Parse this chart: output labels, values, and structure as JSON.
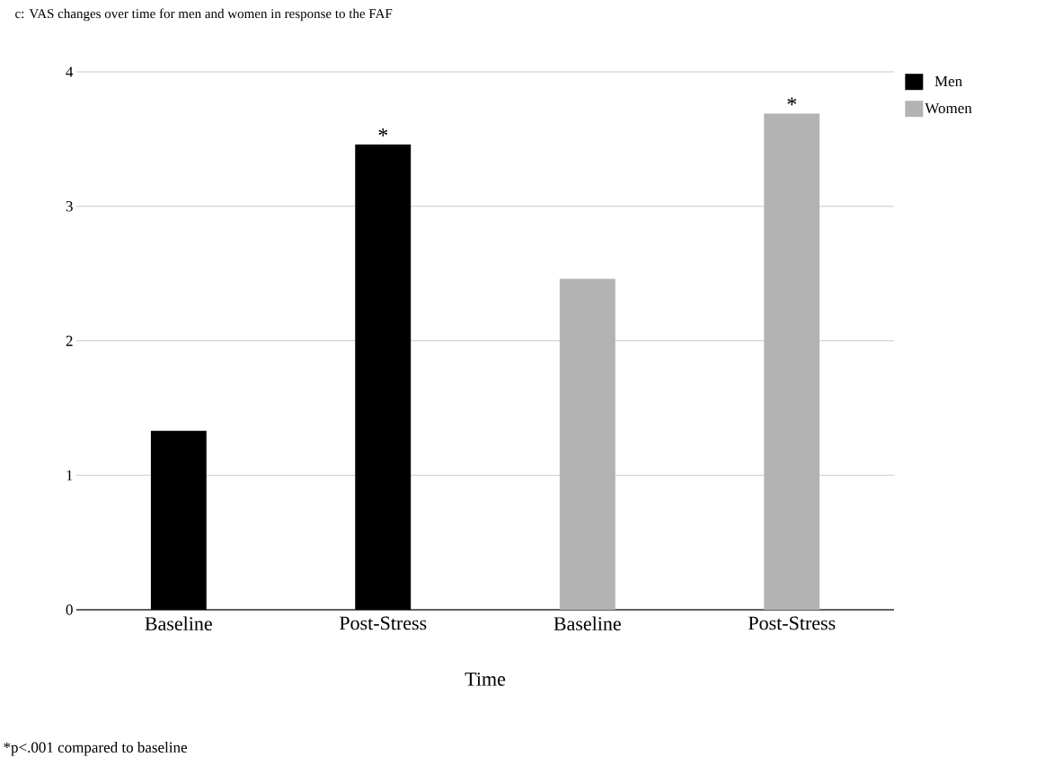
{
  "chart_data": {
    "type": "bar",
    "title": "c: VAS changes over time for men and women in response to the FAF",
    "xlabel": "Time",
    "categories": [
      "Baseline",
      "Post-Stress",
      "Baseline",
      "Post-Stress"
    ],
    "series": [
      {
        "name": "Men",
        "color": "#000000",
        "values": [
          1.33,
          3.46,
          null,
          null
        ],
        "value_labels": [
          null,
          "*",
          null,
          null
        ]
      },
      {
        "name": "Women",
        "color": "#b3b3b3",
        "values": [
          null,
          null,
          2.46,
          3.69
        ],
        "value_labels": [
          null,
          null,
          null,
          "*"
        ]
      }
    ],
    "ylim": [
      0,
      4
    ],
    "yticks": [
      0,
      1,
      2,
      3,
      4
    ],
    "grid": "y",
    "legend": "top right",
    "annotations": [
      "*p<.001 compared to baseline"
    ]
  }
}
